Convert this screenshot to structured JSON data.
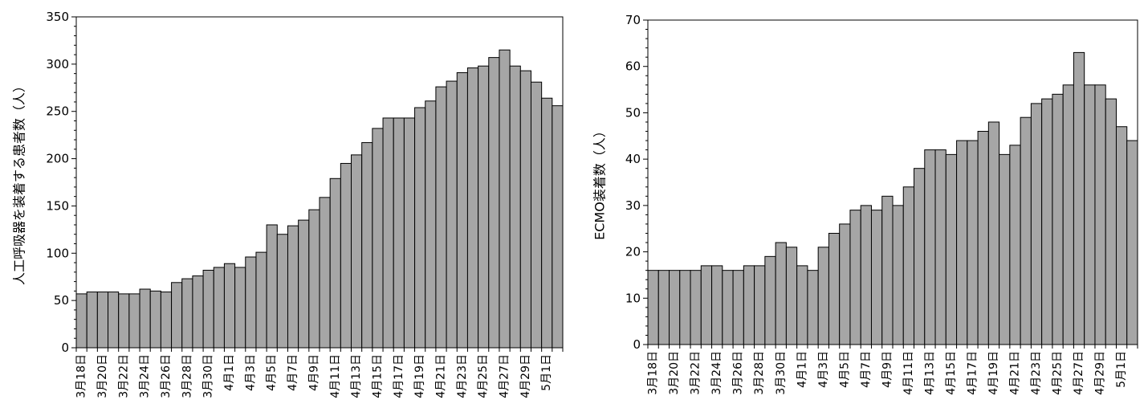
{
  "chart_data": [
    {
      "type": "bar",
      "ylabel": "人工呼吸器を装着する患者数（人）",
      "xlabel": "",
      "ylim": [
        0,
        350
      ],
      "y_ticks": [
        0,
        50,
        100,
        150,
        200,
        250,
        300,
        350
      ],
      "categories": [
        "3月18日",
        "3月19日",
        "3月20日",
        "3月21日",
        "3月22日",
        "3月23日",
        "3月24日",
        "3月25日",
        "3月26日",
        "3月27日",
        "3月28日",
        "3月29日",
        "3月30日",
        "3月31日",
        "4月1日",
        "4月2日",
        "4月3日",
        "4月4日",
        "4月5日",
        "4月6日",
        "4月7日",
        "4月8日",
        "4月9日",
        "4月10日",
        "4月11日",
        "4月12日",
        "4月13日",
        "4月14日",
        "4月15日",
        "4月16日",
        "4月17日",
        "4月18日",
        "4月19日",
        "4月20日",
        "4月21日",
        "4月22日",
        "4月23日",
        "4月24日",
        "4月25日",
        "4月26日",
        "4月27日",
        "4月28日",
        "4月29日",
        "4月30日",
        "5月1日",
        "5月2日"
      ],
      "labeled_categories": [
        "3月18日",
        "3月20日",
        "3月22日",
        "3月24日",
        "3月26日",
        "3月28日",
        "3月30日",
        "4月1日",
        "4月3日",
        "4月5日",
        "4月7日",
        "4月9日",
        "4月11日",
        "4月13日",
        "4月15日",
        "4月17日",
        "4月19日",
        "4月21日",
        "4月23日",
        "4月25日",
        "4月27日",
        "4月29日",
        "5月1日"
      ],
      "values": [
        57,
        59,
        59,
        59,
        57,
        57,
        62,
        60,
        59,
        69,
        73,
        76,
        82,
        85,
        89,
        85,
        96,
        101,
        130,
        120,
        129,
        135,
        146,
        159,
        179,
        195,
        204,
        217,
        232,
        243,
        243,
        243,
        254,
        261,
        276,
        282,
        291,
        296,
        298,
        307,
        315,
        298,
        293,
        281,
        264,
        256
      ]
    },
    {
      "type": "bar",
      "ylabel": "ECMO装着数（人）",
      "xlabel": "",
      "ylim": [
        0,
        70
      ],
      "y_ticks": [
        0,
        10,
        20,
        30,
        40,
        50,
        60,
        70
      ],
      "categories": [
        "3月18日",
        "3月19日",
        "3月20日",
        "3月21日",
        "3月22日",
        "3月23日",
        "3月24日",
        "3月25日",
        "3月26日",
        "3月27日",
        "3月28日",
        "3月29日",
        "3月30日",
        "3月31日",
        "4月1日",
        "4月2日",
        "4月3日",
        "4月4日",
        "4月5日",
        "4月6日",
        "4月7日",
        "4月8日",
        "4月9日",
        "4月10日",
        "4月11日",
        "4月12日",
        "4月13日",
        "4月14日",
        "4月15日",
        "4月16日",
        "4月17日",
        "4月18日",
        "4月19日",
        "4月20日",
        "4月21日",
        "4月22日",
        "4月23日",
        "4月24日",
        "4月25日",
        "4月26日",
        "4月27日",
        "4月28日",
        "4月29日",
        "4月30日",
        "5月1日",
        "5月2日"
      ],
      "labeled_categories": [
        "3月18日",
        "3月20日",
        "3月22日",
        "3月24日",
        "3月26日",
        "3月28日",
        "3月30日",
        "4月1日",
        "4月3日",
        "4月5日",
        "4月7日",
        "4月9日",
        "4月11日",
        "4月13日",
        "4月15日",
        "4月17日",
        "4月19日",
        "4月21日",
        "4月23日",
        "4月25日",
        "4月27日",
        "4月29日",
        "5月1日"
      ],
      "values": [
        16,
        16,
        16,
        16,
        16,
        17,
        17,
        16,
        16,
        17,
        17,
        19,
        22,
        21,
        17,
        16,
        21,
        24,
        26,
        29,
        30,
        29,
        32,
        30,
        34,
        38,
        42,
        42,
        41,
        44,
        44,
        46,
        48,
        41,
        43,
        49,
        52,
        53,
        54,
        56,
        63,
        56,
        56,
        53,
        47,
        44
      ]
    }
  ],
  "style": {
    "bar_fill": "#a6a6a6",
    "bar_stroke": "#000000",
    "axis": "#000000"
  }
}
